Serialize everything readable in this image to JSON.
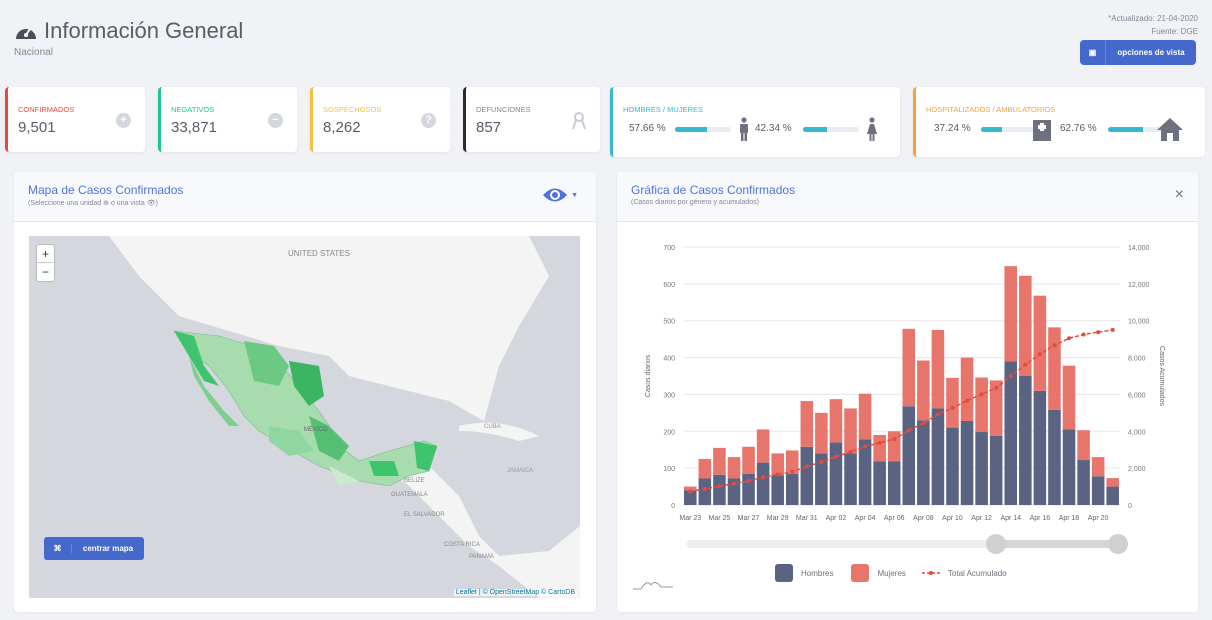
{
  "header": {
    "title": "Información General",
    "subtitle": "Nacional",
    "updated": "*Actualizado: 21-04-2020",
    "source": "Fuente: DGE",
    "options_button": "opciones de vista",
    "icon": "tachometer-icon"
  },
  "cards": [
    {
      "label": "CONFIRMADOS",
      "value": "9,501",
      "color": "#e74a3b",
      "icon": "plus-circle-icon"
    },
    {
      "label": "NEGATIVOS",
      "value": "33,871",
      "color": "#1cc88a",
      "icon": "minus-circle-icon"
    },
    {
      "label": "SOSPECHOSOS",
      "value": "8,262",
      "color": "#f6c23e",
      "icon": "question-circle-icon"
    },
    {
      "label": "DEFUNCIONES",
      "value": "857",
      "color": "#2b2b2b",
      "icon": "ribbon-icon"
    }
  ],
  "gender": {
    "label": "HOMBRES / MUJERES",
    "men_pct": "57.66 %",
    "women_pct": "42.34 %",
    "men_value": 57.66,
    "women_value": 42.34,
    "color": "#36b9cc"
  },
  "hosp": {
    "label": "HOSPITALIZADOS / AMBULATORIOS",
    "hosp_pct": "37.24 %",
    "amb_pct": "62.76 %",
    "hosp_value": 37.24,
    "amb_value": 62.76,
    "color": "#f6a03e"
  },
  "map_panel": {
    "title": "Mapa de Casos Confirmados",
    "subtitle": "(Seleccione una unidad ⊕ o una vista 👁)",
    "zoom_in": "+",
    "zoom_out": "−",
    "center_button": "centrar mapa",
    "attribution_leaflet": "Leaflet",
    "attribution_rest": " | © OpenStreetMap © CartoDB",
    "labels": {
      "us": "UNITED STATES",
      "cuba": "CUBA",
      "jamaica": "JAMAICA",
      "belize": "BELIZE",
      "guatemala": "GUATEMALA",
      "el_salvador": "EL SALVADOR",
      "costa_rica": "COSTA RICA",
      "panama": "PANAMA",
      "mexico": "MÉXICO"
    }
  },
  "chart_panel": {
    "title": "Gráfica de Casos Confirmados",
    "subtitle": "(Casos diarios por género y acumulados)",
    "close": "×"
  },
  "chart_data": {
    "type": "bar",
    "stacked": true,
    "x": [
      "Mar 23",
      "Mar 24",
      "Mar 25",
      "Mar 26",
      "Mar 27",
      "Mar 28",
      "Mar 29",
      "Mar 30",
      "Mar 31",
      "Apr 01",
      "Apr 02",
      "Apr 03",
      "Apr 04",
      "Apr 05",
      "Apr 06",
      "Apr 07",
      "Apr 08",
      "Apr 09",
      "Apr 10",
      "Apr 11",
      "Apr 12",
      "Apr 13",
      "Apr 14",
      "Apr 15",
      "Apr 16",
      "Apr 17",
      "Apr 18",
      "Apr 19",
      "Apr 20",
      "Apr 21"
    ],
    "tick_labels": [
      "Mar 23",
      "Mar 25",
      "Mar 27",
      "Mar 29",
      "Mar 31",
      "Apr 02",
      "Apr 04",
      "Apr 06",
      "Apr 08",
      "Apr 10",
      "Apr 12",
      "Apr 14",
      "Apr 16",
      "Apr 18",
      "Apr 20"
    ],
    "series": [
      {
        "name": "Hombres",
        "color": "#5a6382",
        "values": [
          40,
          72,
          82,
          72,
          85,
          115,
          80,
          85,
          158,
          140,
          170,
          140,
          178,
          118,
          118,
          268,
          230,
          262,
          210,
          228,
          198,
          188,
          390,
          350,
          310,
          258,
          205,
          122,
          78,
          50
        ]
      },
      {
        "name": "Mujeres",
        "color": "#e8756b",
        "values": [
          10,
          53,
          73,
          58,
          73,
          90,
          60,
          63,
          124,
          110,
          117,
          122,
          124,
          72,
          82,
          210,
          162,
          213,
          135,
          172,
          148,
          150,
          258,
          272,
          258,
          224,
          173,
          81,
          52,
          23
        ]
      },
      {
        "name": "Total Acumulado",
        "color": "#e74a3b",
        "type": "line",
        "axis": "right",
        "values": [
          740,
          865,
          1020,
          1150,
          1308,
          1513,
          1653,
          1801,
          2083,
          2333,
          2620,
          2882,
          3184,
          3374,
          3574,
          4052,
          4444,
          4919,
          5264,
          5664,
          6010,
          6348,
          6996,
          7618,
          8186,
          8668,
          9046,
          9249,
          9379,
          9501
        ]
      }
    ],
    "ylabel": "Casos diarios",
    "y2label": "Casos Acumulados",
    "ylim": [
      0,
      700
    ],
    "y2lim": [
      0,
      14000
    ],
    "yticks": [
      "0",
      "100",
      "200",
      "300",
      "400",
      "500",
      "600",
      "700"
    ],
    "y2ticks": [
      "0",
      "2,000",
      "4,000",
      "6,000",
      "8,000",
      "10,000",
      "12,000",
      "14,000"
    ],
    "grid": true,
    "legend": "bottom"
  }
}
